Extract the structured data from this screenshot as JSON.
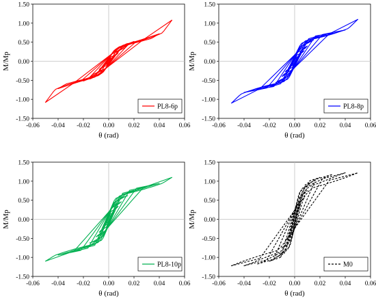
{
  "chart_data": [
    {
      "type": "line",
      "xlabel": "θ (rad)",
      "ylabel": "M/Mp",
      "xlim": [
        -0.06,
        0.06
      ],
      "ylim": [
        -1.5,
        1.5
      ],
      "xticks": [
        "-0.06",
        "-0.04",
        "-0.02",
        "0.00",
        "0.02",
        "0.04",
        "0.06"
      ],
      "yticks": [
        "-1.50",
        "-1.00",
        "-0.50",
        "0.00",
        "0.50",
        "1.00",
        "1.50"
      ],
      "legend_position": "bottom-right",
      "series": [
        {
          "name": "PL8-6p",
          "color": "#ff0000",
          "dash": "solid",
          "loops": [
            {
              "amplitude": 0.00375,
              "peak": 0.1,
              "plateau": 0.08,
              "slip": 0.45
            },
            {
              "amplitude": 0.005,
              "peak": 0.14,
              "plateau": 0.1,
              "slip": 0.45
            },
            {
              "amplitude": 0.0075,
              "peak": 0.22,
              "plateau": 0.16,
              "slip": 0.45
            },
            {
              "amplitude": 0.01,
              "peak": 0.32,
              "plateau": 0.26,
              "slip": 0.45
            },
            {
              "amplitude": 0.015,
              "peak": 0.42,
              "plateau": 0.32,
              "slip": 0.45
            },
            {
              "amplitude": 0.02,
              "peak": 0.52,
              "plateau": 0.42,
              "slip": 0.45
            },
            {
              "amplitude": 0.03,
              "peak": 0.6,
              "plateau": 0.5,
              "slip": 0.45
            },
            {
              "amplitude": 0.04,
              "peak": 0.72,
              "plateau": 0.55,
              "slip": 0.45
            },
            {
              "amplitude": 0.05,
              "peak": 1.08,
              "plateau": 0.6,
              "slip": 0.45
            }
          ]
        },
        {
          "name": "PL8-8p",
          "color": "#0000ff",
          "dash": "solid",
          "loops": [
            {
              "amplitude": 0.00375,
              "peak": 0.12,
              "plateau": 0.1,
              "slip": 0.6
            },
            {
              "amplitude": 0.005,
              "peak": 0.18,
              "plateau": 0.14,
              "slip": 0.6
            },
            {
              "amplitude": 0.0075,
              "peak": 0.28,
              "plateau": 0.22,
              "slip": 0.6
            },
            {
              "amplitude": 0.01,
              "peak": 0.4,
              "plateau": 0.32,
              "slip": 0.6
            },
            {
              "amplitude": 0.015,
              "peak": 0.56,
              "plateau": 0.5,
              "slip": 0.6
            },
            {
              "amplitude": 0.02,
              "peak": 0.68,
              "plateau": 0.62,
              "slip": 0.6
            },
            {
              "amplitude": 0.03,
              "peak": 0.74,
              "plateau": 0.7,
              "slip": 0.6
            },
            {
              "amplitude": 0.04,
              "peak": 0.82,
              "plateau": 0.74,
              "slip": 0.6
            },
            {
              "amplitude": 0.05,
              "peak": 1.1,
              "plateau": 0.76,
              "slip": 0.6
            }
          ]
        },
        {
          "name": "PL8-10p",
          "color": "#00b050",
          "dash": "solid",
          "loops": [
            {
              "amplitude": 0.00375,
              "peak": 0.16,
              "plateau": 0.12,
              "slip": 0.75
            },
            {
              "amplitude": 0.005,
              "peak": 0.22,
              "plateau": 0.18,
              "slip": 0.75
            },
            {
              "amplitude": 0.0075,
              "peak": 0.34,
              "plateau": 0.28,
              "slip": 0.75
            },
            {
              "amplitude": 0.01,
              "peak": 0.46,
              "plateau": 0.4,
              "slip": 0.75
            },
            {
              "amplitude": 0.015,
              "peak": 0.62,
              "plateau": 0.58,
              "slip": 0.75
            },
            {
              "amplitude": 0.02,
              "peak": 0.76,
              "plateau": 0.72,
              "slip": 0.75
            },
            {
              "amplitude": 0.03,
              "peak": 0.86,
              "plateau": 0.8,
              "slip": 0.75
            },
            {
              "amplitude": 0.04,
              "peak": 0.94,
              "plateau": 0.86,
              "slip": 0.75
            },
            {
              "amplitude": 0.05,
              "peak": 1.1,
              "plateau": 0.88,
              "slip": 0.75
            }
          ]
        },
        {
          "name": "M0",
          "color": "#000000",
          "dash": "dashed",
          "loops": [
            {
              "amplitude": 0.00375,
              "peak": 0.3,
              "plateau": 0.25,
              "slip": 0.95
            },
            {
              "amplitude": 0.005,
              "peak": 0.4,
              "plateau": 0.35,
              "slip": 0.95
            },
            {
              "amplitude": 0.0075,
              "peak": 0.55,
              "plateau": 0.5,
              "slip": 0.95
            },
            {
              "amplitude": 0.01,
              "peak": 0.75,
              "plateau": 0.7,
              "slip": 0.95
            },
            {
              "amplitude": 0.015,
              "peak": 1.0,
              "plateau": 0.95,
              "slip": 0.95
            },
            {
              "amplitude": 0.02,
              "peak": 1.1,
              "plateau": 1.05,
              "slip": 0.95
            },
            {
              "amplitude": 0.03,
              "peak": 1.18,
              "plateau": 1.1,
              "slip": 0.95
            },
            {
              "amplitude": 0.04,
              "peak": 1.22,
              "plateau": 1.12,
              "slip": 0.95
            },
            {
              "amplitude": 0.05,
              "peak": 1.22,
              "plateau": 1.08,
              "slip": 0.95
            }
          ]
        }
      ]
    }
  ]
}
